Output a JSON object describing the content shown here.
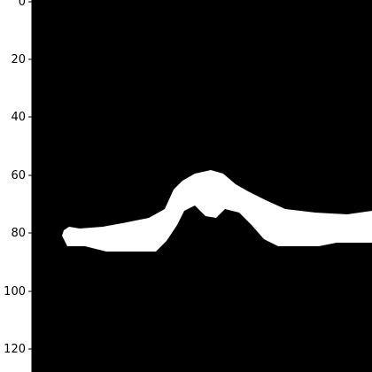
{
  "figure": {
    "image": {
      "description_kind": "binary mask",
      "background_color": "#000000",
      "foreground_color": "#ffffff"
    },
    "y_axis": {
      "ticks": [
        "0",
        "20",
        "40",
        "60",
        "80",
        "100",
        "120"
      ]
    }
  }
}
